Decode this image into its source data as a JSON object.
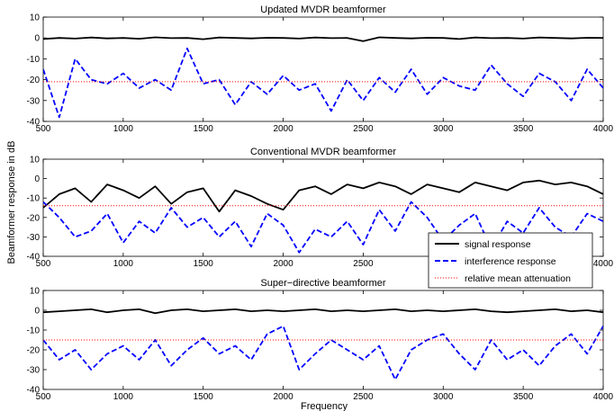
{
  "chart_data": {
    "type": "line",
    "ylabel": "Beamformer response in dB",
    "xlabel": "Frequency",
    "colors": {
      "signal": "#000000",
      "interference": "#0000ff",
      "mean": "#ff0000"
    },
    "legend": {
      "placement": "right, overlapping panel 2 and 3",
      "entries": [
        "signal response",
        "interference response",
        "relative mean attenuation"
      ]
    },
    "panels": [
      {
        "title": "Updated MVDR beamformer",
        "xlim": [
          500,
          4000
        ],
        "ylim": [
          -40,
          10
        ],
        "xticks": [
          500,
          1000,
          1500,
          2000,
          2500,
          3000,
          3500,
          4000
        ],
        "yticks": [
          10,
          0,
          -10,
          -20,
          -30,
          -40
        ],
        "x": [
          500,
          600,
          700,
          800,
          900,
          1000,
          1100,
          1200,
          1300,
          1400,
          1500,
          1600,
          1700,
          1800,
          1900,
          2000,
          2100,
          2200,
          2300,
          2400,
          2500,
          2600,
          2700,
          2800,
          2900,
          3000,
          3100,
          3200,
          3300,
          3400,
          3500,
          3600,
          3700,
          3800,
          3900,
          4000
        ],
        "series": [
          {
            "name": "signal response",
            "values": [
              -0.5,
              0,
              -0.3,
              0.2,
              -0.2,
              0,
              -0.4,
              0.3,
              -0.1,
              0,
              -0.6,
              0.2,
              0,
              -0.2,
              0.1,
              0,
              -0.3,
              0.2,
              -0.1,
              0,
              -1.5,
              0.3,
              0,
              -0.2,
              0.1,
              0,
              -0.5,
              0.2,
              -0.1,
              0,
              -0.3,
              0.2,
              0,
              -0.2,
              0.1,
              0
            ]
          },
          {
            "name": "interference response",
            "values": [
              -15,
              -38,
              -10,
              -20,
              -22,
              -17,
              -24,
              -20,
              -25,
              -5,
              -22,
              -20,
              -32,
              -21,
              -27,
              -18,
              -25,
              -22,
              -35,
              -20,
              -30,
              -19,
              -26,
              -15,
              -27,
              -19,
              -23,
              -25,
              -13,
              -22,
              -28,
              -17,
              -21,
              -30,
              -15,
              -24
            ]
          },
          {
            "name": "relative mean attenuation",
            "values": [
              -21,
              -21,
              -21,
              -21,
              -21,
              -21,
              -21,
              -21,
              -21,
              -21,
              -21,
              -21,
              -21,
              -21,
              -21,
              -21,
              -21,
              -21,
              -21,
              -21,
              -21,
              -21,
              -21,
              -21,
              -21,
              -21,
              -21,
              -21,
              -21,
              -21,
              -21,
              -21,
              -21,
              -21,
              -21,
              -21
            ]
          }
        ]
      },
      {
        "title": "Conventional MVDR beamformer",
        "xlim": [
          500,
          4000
        ],
        "ylim": [
          -40,
          10
        ],
        "xticks": [
          500,
          1000,
          1500,
          2000,
          2500,
          3000,
          3500,
          4000
        ],
        "yticks": [
          10,
          0,
          -10,
          -20,
          -30,
          -40
        ],
        "x": [
          500,
          600,
          700,
          800,
          900,
          1000,
          1100,
          1200,
          1300,
          1400,
          1500,
          1600,
          1700,
          1800,
          1900,
          2000,
          2100,
          2200,
          2300,
          2400,
          2500,
          2600,
          2700,
          2800,
          2900,
          3000,
          3100,
          3200,
          3300,
          3400,
          3500,
          3600,
          3700,
          3800,
          3900,
          4000
        ],
        "series": [
          {
            "name": "signal response",
            "values": [
              -15,
              -8,
              -5,
              -12,
              -3,
              -6,
              -10,
              -4,
              -13,
              -7,
              -5,
              -17,
              -6,
              -9,
              -13,
              -16,
              -6,
              -4,
              -8,
              -3,
              -5,
              -2,
              -4,
              -8,
              -3,
              -5,
              -7,
              -2,
              -4,
              -6,
              -2,
              -1,
              -3,
              -2,
              -4,
              -8
            ]
          },
          {
            "name": "interference response",
            "values": [
              -12,
              -20,
              -30,
              -27,
              -18,
              -33,
              -22,
              -28,
              -15,
              -25,
              -20,
              -30,
              -22,
              -35,
              -18,
              -24,
              -38,
              -26,
              -30,
              -22,
              -34,
              -16,
              -27,
              -12,
              -20,
              -32,
              -24,
              -18,
              -36,
              -22,
              -28,
              -15,
              -25,
              -30,
              -18,
              -22
            ]
          },
          {
            "name": "relative mean attenuation",
            "values": [
              -14,
              -14,
              -14,
              -14,
              -14,
              -14,
              -14,
              -14,
              -14,
              -14,
              -14,
              -14,
              -14,
              -14,
              -14,
              -14,
              -14,
              -14,
              -14,
              -14,
              -14,
              -14,
              -14,
              -14,
              -14,
              -14,
              -14,
              -14,
              -14,
              -14,
              -14,
              -14,
              -14,
              -14,
              -14,
              -14
            ]
          }
        ]
      },
      {
        "title": "Super−directive beamformer",
        "xlim": [
          500,
          4000
        ],
        "ylim": [
          -40,
          10
        ],
        "xticks": [
          500,
          1000,
          1500,
          2000,
          2500,
          3000,
          3500,
          4000
        ],
        "yticks": [
          10,
          0,
          -10,
          -20,
          -30,
          -40
        ],
        "x": [
          500,
          600,
          700,
          800,
          900,
          1000,
          1100,
          1200,
          1300,
          1400,
          1500,
          1600,
          1700,
          1800,
          1900,
          2000,
          2100,
          2200,
          2300,
          2400,
          2500,
          2600,
          2700,
          2800,
          2900,
          3000,
          3100,
          3200,
          3300,
          3400,
          3500,
          3600,
          3700,
          3800,
          3900,
          4000
        ],
        "series": [
          {
            "name": "signal response",
            "values": [
              -1,
              -0.5,
              0,
              0.5,
              -1,
              0,
              0.5,
              -1.5,
              0,
              0.5,
              -0.5,
              0,
              0.5,
              -0.5,
              0,
              -0.5,
              0,
              0.5,
              -0.5,
              0,
              -0.5,
              0,
              0.5,
              -0.5,
              0,
              -0.5,
              0,
              0.5,
              -0.5,
              -1,
              -0.5,
              0,
              0.5,
              -0.5,
              0,
              -1
            ]
          },
          {
            "name": "interference response",
            "values": [
              -15,
              -25,
              -20,
              -30,
              -22,
              -18,
              -25,
              -15,
              -28,
              -20,
              -14,
              -22,
              -18,
              -25,
              -12,
              -8,
              -30,
              -22,
              -15,
              -20,
              -25,
              -18,
              -35,
              -20,
              -15,
              -12,
              -22,
              -30,
              -15,
              -25,
              -20,
              -28,
              -18,
              -12,
              -22,
              -8
            ]
          },
          {
            "name": "relative mean attenuation",
            "values": [
              -15,
              -15,
              -15,
              -15,
              -15,
              -15,
              -15,
              -15,
              -15,
              -15,
              -15,
              -15,
              -15,
              -15,
              -15,
              -15,
              -15,
              -15,
              -15,
              -15,
              -15,
              -15,
              -15,
              -15,
              -15,
              -15,
              -15,
              -15,
              -15,
              -15,
              -15,
              -15,
              -15,
              -15,
              -15,
              -15
            ]
          }
        ]
      }
    ]
  }
}
